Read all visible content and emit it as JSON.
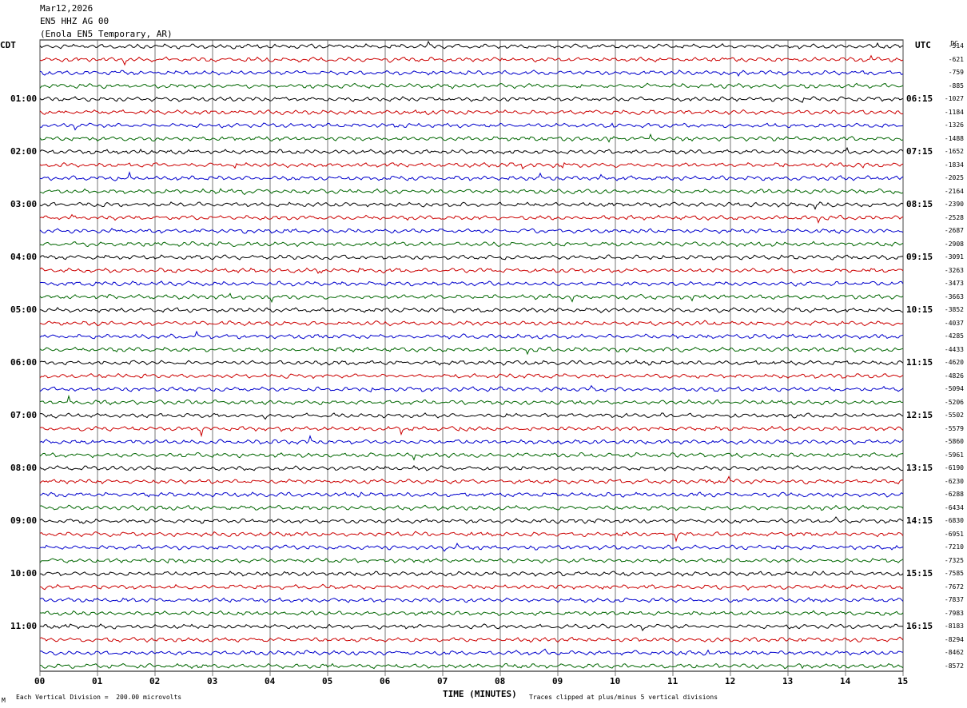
{
  "header": {
    "date": "Mar12,2026",
    "channel": "EN5 HHZ AG 00",
    "station": "(Enola EN5 Temporary, AR)"
  },
  "left_zone": "CDT",
  "right_zone": "UTC",
  "dc_label": "DC",
  "footer": {
    "scale": "Each Vertical Division =  200.00 microvolts",
    "clip": "Traces clipped at plus/minus 5 vertical divisions",
    "mark": "M"
  },
  "chart_data": {
    "type": "line",
    "title": "",
    "xlabel": "TIME (MINUTES)",
    "xlim": [
      0,
      15
    ],
    "x_ticks": [
      "00",
      "01",
      "02",
      "03",
      "04",
      "05",
      "06",
      "07",
      "08",
      "09",
      "10",
      "11",
      "12",
      "13",
      "14",
      "15"
    ],
    "rows": 48,
    "row_colors": [
      "#000000",
      "#cc0000",
      "#0000cc",
      "#006600"
    ],
    "left_time_labels": [
      "01:00",
      "02:00",
      "03:00",
      "04:00",
      "05:00",
      "06:00",
      "07:00",
      "08:00",
      "09:00",
      "10:00",
      "11:00"
    ],
    "right_time_labels": [
      "06:15",
      "07:15",
      "08:15",
      "09:15",
      "10:15",
      "11:15",
      "12:15",
      "13:15",
      "14:15",
      "15:15",
      "16:15"
    ],
    "dc_offsets": [
      "-514",
      "-621",
      "-759",
      "-885",
      "-1027",
      "-1184",
      "-1326",
      "-1488",
      "-1652",
      "-1834",
      "-2025",
      "-2164",
      "-2390",
      "-2528",
      "-2687",
      "-2908",
      "-3091",
      "-3263",
      "-3473",
      "-3663",
      "-3852",
      "-4037",
      "-4285",
      "-4433",
      "-4620",
      "-4826",
      "-5094",
      "-5206",
      "-5502",
      "-5579",
      "-5860",
      "-5961",
      "-6190",
      "-6230",
      "-6288",
      "-6434",
      "-6830",
      "-6951",
      "-7210",
      "-7325",
      "-7585",
      "-7672",
      "-7837",
      "-7983",
      "-8183",
      "-8294",
      "-8462",
      "-8572"
    ],
    "grid": true
  }
}
